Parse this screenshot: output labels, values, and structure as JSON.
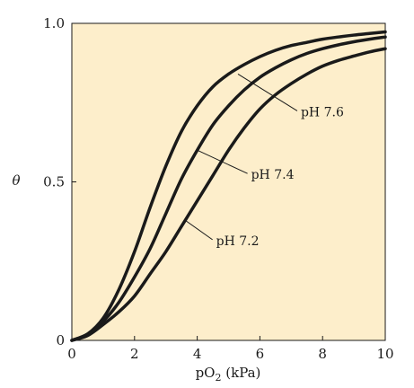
{
  "chart_data": {
    "type": "line",
    "title": "",
    "xlabel_main": "pO",
    "xlabel_sub": "2",
    "xlabel_unit": " (kPa)",
    "ylabel": "θ",
    "xlim": [
      0,
      10
    ],
    "ylim": [
      0,
      1.0
    ],
    "x_ticks": [
      0,
      2,
      4,
      6,
      8,
      10
    ],
    "x_tick_labels": [
      "0",
      "2",
      "4",
      "6",
      "8",
      "10"
    ],
    "y_ticks": [
      0,
      0.5,
      1.0
    ],
    "y_tick_labels": [
      "0",
      "0.5",
      "1.0"
    ],
    "grid": false,
    "plot_background": "#fdeecb",
    "line_color": "#1a1a1a",
    "series": [
      {
        "name": "pH 7.6",
        "x": [
          0,
          0.5,
          1,
          1.5,
          2,
          2.5,
          3,
          3.5,
          4,
          4.5,
          5,
          5.5,
          6,
          6.5,
          7,
          7.5,
          8,
          8.5,
          9,
          9.5,
          10
        ],
        "y": [
          0,
          0.02,
          0.07,
          0.16,
          0.28,
          0.42,
          0.55,
          0.66,
          0.74,
          0.8,
          0.84,
          0.87,
          0.895,
          0.915,
          0.93,
          0.94,
          0.95,
          0.957,
          0.963,
          0.968,
          0.973
        ],
        "label_pointer": {
          "x": 5.3,
          "y": 0.84
        }
      },
      {
        "name": "pH 7.4",
        "x": [
          0,
          0.5,
          1,
          1.5,
          2,
          2.5,
          3,
          3.5,
          4,
          4.5,
          5,
          5.5,
          6,
          6.5,
          7,
          7.5,
          8,
          8.5,
          9,
          9.5,
          10
        ],
        "y": [
          0,
          0.02,
          0.06,
          0.12,
          0.2,
          0.29,
          0.4,
          0.51,
          0.6,
          0.68,
          0.74,
          0.79,
          0.83,
          0.86,
          0.885,
          0.905,
          0.92,
          0.932,
          0.942,
          0.95,
          0.957
        ],
        "label_pointer": {
          "x": 4.0,
          "y": 0.6
        }
      },
      {
        "name": "pH 7.2",
        "x": [
          0,
          0.5,
          1,
          1.5,
          2,
          2.5,
          3,
          3.5,
          4,
          4.5,
          5,
          5.5,
          6,
          6.5,
          7,
          7.5,
          8,
          8.5,
          9,
          9.5,
          10
        ],
        "y": [
          0,
          0.015,
          0.05,
          0.09,
          0.14,
          0.21,
          0.28,
          0.36,
          0.44,
          0.52,
          0.6,
          0.67,
          0.73,
          0.775,
          0.81,
          0.84,
          0.865,
          0.883,
          0.897,
          0.91,
          0.92
        ],
        "label_pointer": {
          "x": 3.6,
          "y": 0.38
        }
      }
    ]
  }
}
